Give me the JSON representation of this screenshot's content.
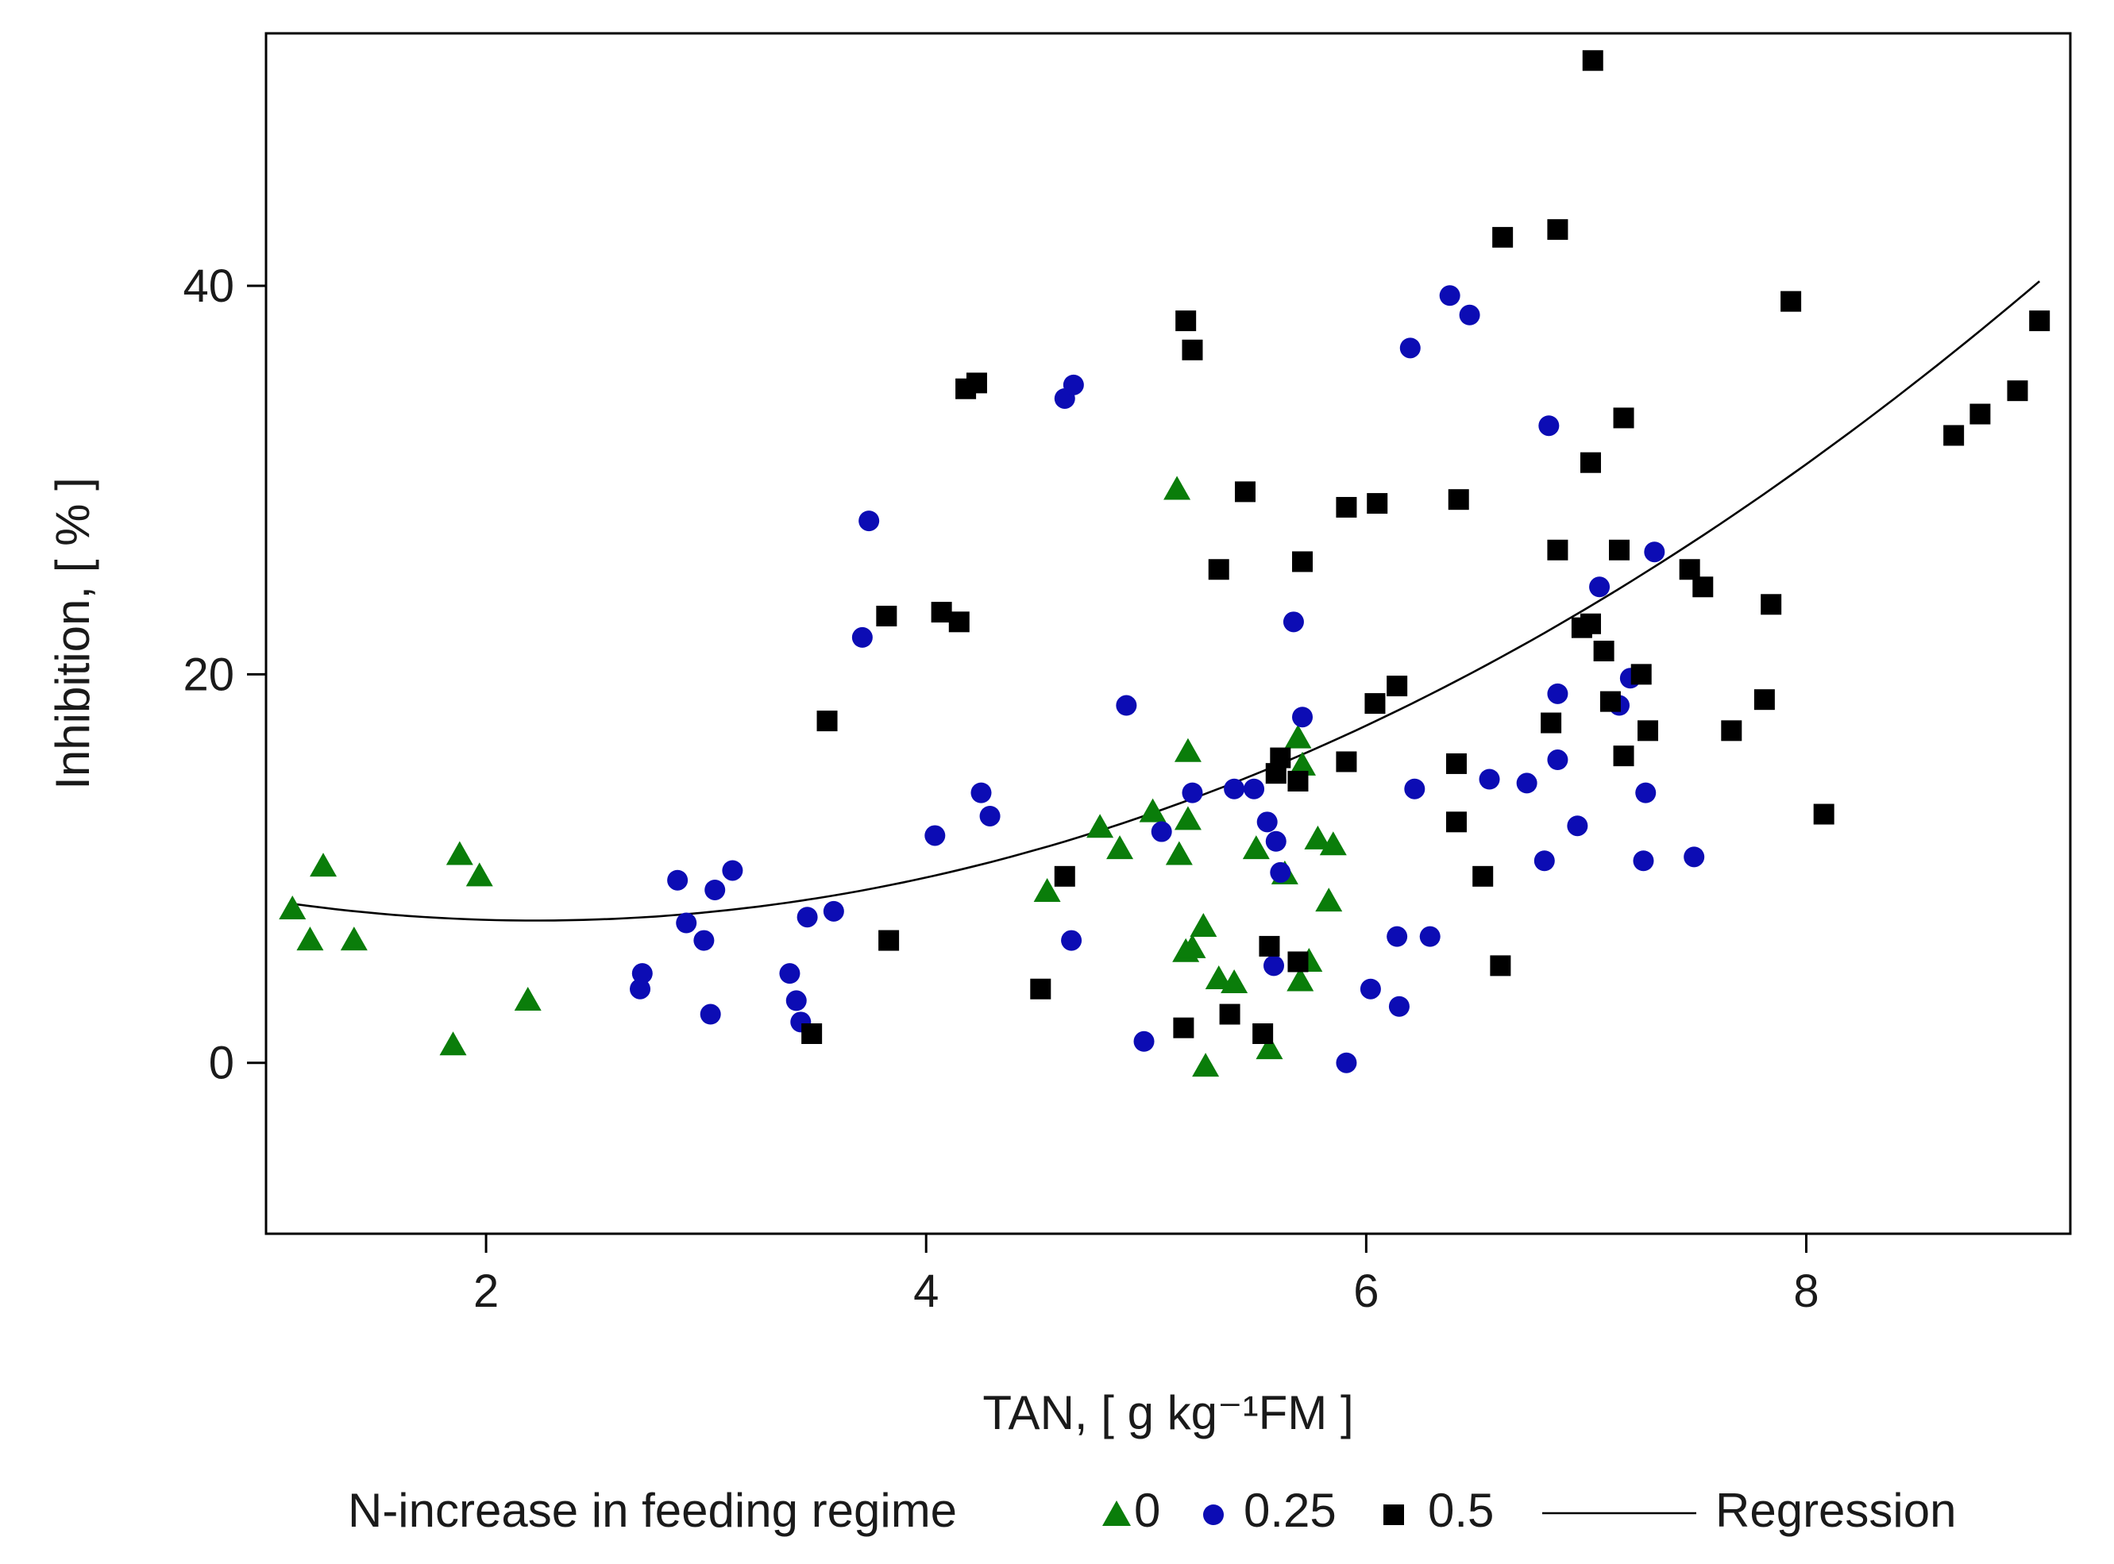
{
  "chart_data": {
    "type": "scatter",
    "title": "",
    "xlabel": "TAN, [ g kg⁻¹FM ]",
    "ylabel": "Inhibition,  [ % ]",
    "xlim": [
      1.0,
      9.2
    ],
    "ylim": [
      -8.8,
      53.0
    ],
    "xticks": [
      2,
      4,
      6,
      8
    ],
    "xtick_labels": [
      "2",
      "4",
      "6",
      "8"
    ],
    "yticks": [
      0,
      20,
      40
    ],
    "ytick_labels": [
      "0",
      "20",
      "40"
    ],
    "grid": false,
    "legend": {
      "placement": "bottom",
      "title": "N-increase in feeding regime",
      "items": [
        {
          "label": "0",
          "marker": "triangle",
          "color": "#0a7d0a"
        },
        {
          "label": "0.25",
          "marker": "circle",
          "color": "#0c0cb4"
        },
        {
          "label": "0.5",
          "marker": "square",
          "color": "#000000"
        },
        {
          "label": "Regression",
          "marker": "line",
          "color": "#000000"
        }
      ]
    },
    "series": [
      {
        "name": "0",
        "marker": "triangle",
        "color": "#0a7d0a",
        "points": [
          [
            1.12,
            8.0
          ],
          [
            1.2,
            6.4
          ],
          [
            1.26,
            10.2
          ],
          [
            1.4,
            6.4
          ],
          [
            1.85,
            1.0
          ],
          [
            1.88,
            10.8
          ],
          [
            1.97,
            9.7
          ],
          [
            2.19,
            3.3
          ],
          [
            4.55,
            8.9
          ],
          [
            4.79,
            12.2
          ],
          [
            4.88,
            11.1
          ],
          [
            5.03,
            13.0
          ],
          [
            5.14,
            29.6
          ],
          [
            5.15,
            10.8
          ],
          [
            5.19,
            12.6
          ],
          [
            5.19,
            16.1
          ],
          [
            5.18,
            5.8
          ],
          [
            5.21,
            6.0
          ],
          [
            5.26,
            7.1
          ],
          [
            5.27,
            -0.1
          ],
          [
            5.33,
            4.4
          ],
          [
            5.4,
            4.2
          ],
          [
            5.5,
            11.1
          ],
          [
            5.56,
            0.8
          ],
          [
            5.63,
            9.8
          ],
          [
            5.69,
            16.8
          ],
          [
            5.7,
            4.3
          ],
          [
            5.71,
            15.4
          ],
          [
            5.74,
            5.3
          ],
          [
            5.78,
            11.6
          ],
          [
            5.83,
            8.4
          ],
          [
            5.85,
            11.3
          ]
        ]
      },
      {
        "name": "0.25",
        "marker": "circle",
        "color": "#0c0cb4",
        "points": [
          [
            2.7,
            3.8
          ],
          [
            2.71,
            4.6
          ],
          [
            2.87,
            9.4
          ],
          [
            2.91,
            7.2
          ],
          [
            2.99,
            6.3
          ],
          [
            3.02,
            2.5
          ],
          [
            3.04,
            8.9
          ],
          [
            3.12,
            9.9
          ],
          [
            3.38,
            4.6
          ],
          [
            3.41,
            3.2
          ],
          [
            3.43,
            2.1
          ],
          [
            3.46,
            7.5
          ],
          [
            3.58,
            7.8
          ],
          [
            3.71,
            21.9
          ],
          [
            3.74,
            27.9
          ],
          [
            4.04,
            11.7
          ],
          [
            4.25,
            13.9
          ],
          [
            4.29,
            12.7
          ],
          [
            4.63,
            34.2
          ],
          [
            4.66,
            6.3
          ],
          [
            4.67,
            34.9
          ],
          [
            4.91,
            18.4
          ],
          [
            4.99,
            1.1
          ],
          [
            5.07,
            11.9
          ],
          [
            5.21,
            13.9
          ],
          [
            5.4,
            14.1
          ],
          [
            5.49,
            14.1
          ],
          [
            5.55,
            12.4
          ],
          [
            5.58,
            5.0
          ],
          [
            5.59,
            11.4
          ],
          [
            5.61,
            9.8
          ],
          [
            5.67,
            22.7
          ],
          [
            5.71,
            17.8
          ],
          [
            5.91,
            0.0
          ],
          [
            6.02,
            3.8
          ],
          [
            6.14,
            6.5
          ],
          [
            6.15,
            2.9
          ],
          [
            6.2,
            36.8
          ],
          [
            6.22,
            14.1
          ],
          [
            6.29,
            6.5
          ],
          [
            6.38,
            39.5
          ],
          [
            6.47,
            38.5
          ],
          [
            6.56,
            14.6
          ],
          [
            6.73,
            14.4
          ],
          [
            6.81,
            10.4
          ],
          [
            6.83,
            32.8
          ],
          [
            6.87,
            15.6
          ],
          [
            6.87,
            19.0
          ],
          [
            6.96,
            12.2
          ],
          [
            7.06,
            24.5
          ],
          [
            7.15,
            18.4
          ],
          [
            7.2,
            19.8
          ],
          [
            7.26,
            10.4
          ],
          [
            7.27,
            13.9
          ],
          [
            7.31,
            26.3
          ],
          [
            7.49,
            10.6
          ]
        ]
      },
      {
        "name": "0.5",
        "marker": "square",
        "color": "#000000",
        "points": [
          [
            3.48,
            1.5
          ],
          [
            3.55,
            17.6
          ],
          [
            3.82,
            23.0
          ],
          [
            3.83,
            6.3
          ],
          [
            4.07,
            23.2
          ],
          [
            4.15,
            22.7
          ],
          [
            4.18,
            34.7
          ],
          [
            4.23,
            35.0
          ],
          [
            4.52,
            3.8
          ],
          [
            4.63,
            9.6
          ],
          [
            5.17,
            1.8
          ],
          [
            5.18,
            38.2
          ],
          [
            5.21,
            36.7
          ],
          [
            5.33,
            25.4
          ],
          [
            5.38,
            2.5
          ],
          [
            5.45,
            29.4
          ],
          [
            5.53,
            1.5
          ],
          [
            5.56,
            6.0
          ],
          [
            5.59,
            14.9
          ],
          [
            5.61,
            15.7
          ],
          [
            5.69,
            5.2
          ],
          [
            5.69,
            14.5
          ],
          [
            5.71,
            25.8
          ],
          [
            5.91,
            15.5
          ],
          [
            5.91,
            28.6
          ],
          [
            6.04,
            18.5
          ],
          [
            6.05,
            28.8
          ],
          [
            6.14,
            19.4
          ],
          [
            6.41,
            12.4
          ],
          [
            6.41,
            15.4
          ],
          [
            6.42,
            29.0
          ],
          [
            6.53,
            9.6
          ],
          [
            6.61,
            5.0
          ],
          [
            6.62,
            42.5
          ],
          [
            6.84,
            17.5
          ],
          [
            6.87,
            42.9
          ],
          [
            6.87,
            26.4
          ],
          [
            6.98,
            22.4
          ],
          [
            7.02,
            22.6
          ],
          [
            7.02,
            30.9
          ],
          [
            7.03,
            51.6
          ],
          [
            7.08,
            21.2
          ],
          [
            7.11,
            18.6
          ],
          [
            7.15,
            26.4
          ],
          [
            7.17,
            33.2
          ],
          [
            7.17,
            15.8
          ],
          [
            7.25,
            20.0
          ],
          [
            7.28,
            17.1
          ],
          [
            7.47,
            25.4
          ],
          [
            7.53,
            24.5
          ],
          [
            7.66,
            17.1
          ],
          [
            7.81,
            18.7
          ],
          [
            7.84,
            23.6
          ],
          [
            7.93,
            39.2
          ],
          [
            8.08,
            12.8
          ],
          [
            8.67,
            32.3
          ],
          [
            8.79,
            33.4
          ],
          [
            8.96,
            34.6
          ],
          [
            9.06,
            38.2
          ]
        ]
      }
    ],
    "regression": {
      "name": "Regression",
      "type": "quadratic",
      "coefficients": {
        "a": 0.705,
        "b": -3.14,
        "c": 10.82
      },
      "x_range": [
        1.12,
        9.06
      ]
    }
  }
}
